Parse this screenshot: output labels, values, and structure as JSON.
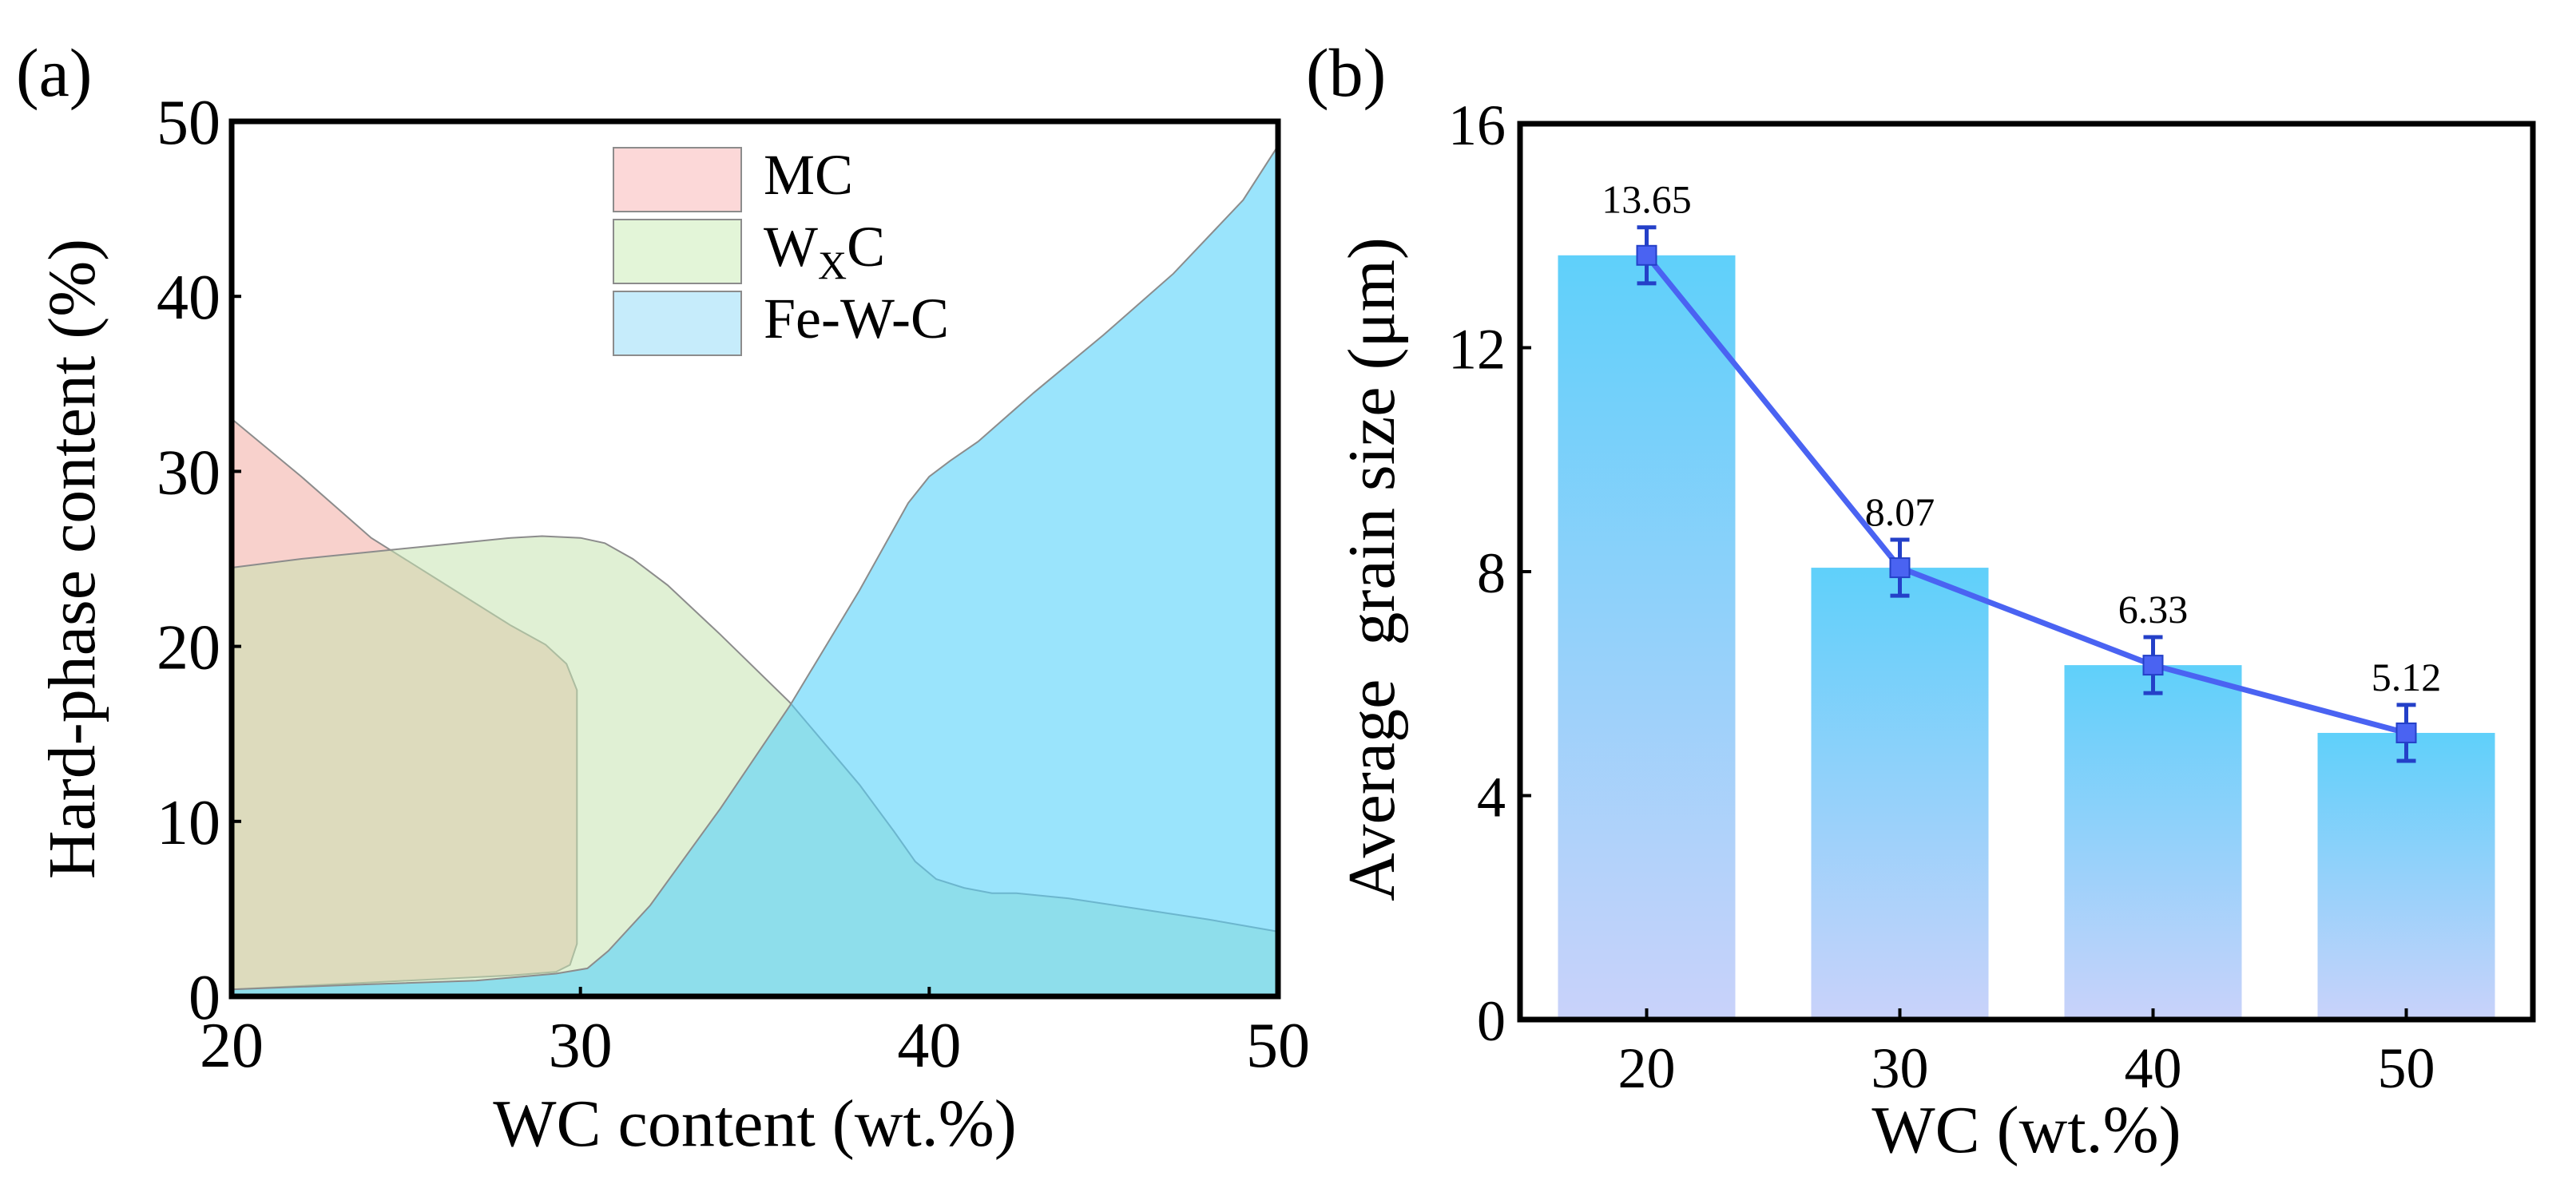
{
  "chart_data": [
    {
      "panel_label": "(a)",
      "type": "area",
      "xlabel": "WC content (wt.%)",
      "ylabel": "Hard-phase content (%)",
      "xlim": [
        20,
        50
      ],
      "ylim": [
        0,
        50
      ],
      "xticks": [
        "20",
        "30",
        "40",
        "50"
      ],
      "yticks": [
        "0",
        "10",
        "20",
        "30",
        "40",
        "50"
      ],
      "legend_position": "top-center",
      "series": [
        {
          "name": "MC",
          "legend_main": "MC",
          "legend_sub": "",
          "legend_tail": "",
          "fill": "#f2a399",
          "fill_opacity": 0.5,
          "legend_fill": "#fcd8d8",
          "points": [
            [
              20.0,
              33.0
            ],
            [
              22.0,
              29.7
            ],
            [
              24.0,
              26.2
            ],
            [
              26.0,
              23.7
            ],
            [
              28.0,
              21.2
            ],
            [
              29.0,
              20.1
            ],
            [
              29.6,
              19.0
            ],
            [
              29.9,
              17.5
            ],
            [
              29.9,
              8.0
            ],
            [
              29.9,
              3.0
            ],
            [
              29.7,
              1.8
            ],
            [
              29.3,
              1.4
            ],
            [
              28.0,
              1.2
            ],
            [
              24.0,
              0.8
            ],
            [
              20.0,
              0.4
            ]
          ]
        },
        {
          "name": "WXC",
          "legend_main": "W",
          "legend_sub": "X",
          "legend_tail": "C",
          "fill": "#c7e3b0",
          "fill_opacity": 0.55,
          "legend_fill": "#e3f5d8",
          "points": [
            [
              20.0,
              24.5
            ],
            [
              22.0,
              25.0
            ],
            [
              24.0,
              25.4
            ],
            [
              26.0,
              25.8
            ],
            [
              28.0,
              26.2
            ],
            [
              28.9,
              26.3
            ],
            [
              30.0,
              26.2
            ],
            [
              30.7,
              25.9
            ],
            [
              31.5,
              25.0
            ],
            [
              32.5,
              23.5
            ],
            [
              34.0,
              20.7
            ],
            [
              36.0,
              16.8
            ],
            [
              38.0,
              12.1
            ],
            [
              39.0,
              9.4
            ],
            [
              39.6,
              7.7
            ],
            [
              40.2,
              6.7
            ],
            [
              41.0,
              6.2
            ],
            [
              41.8,
              5.9
            ],
            [
              42.5,
              5.9
            ],
            [
              44.0,
              5.6
            ],
            [
              46.0,
              5.0
            ],
            [
              48.0,
              4.4
            ],
            [
              50.0,
              3.7
            ],
            [
              50.0,
              0
            ],
            [
              20.0,
              0
            ]
          ]
        },
        {
          "name": "Fe-W-C",
          "legend_main": "Fe-W-C",
          "legend_sub": "",
          "legend_tail": "",
          "fill": "#57d2fa",
          "fill_opacity": 0.6,
          "legend_fill": "#c6ecfb",
          "points": [
            [
              20.0,
              0.4
            ],
            [
              24.0,
              0.7
            ],
            [
              27.0,
              0.9
            ],
            [
              29.3,
              1.3
            ],
            [
              30.2,
              1.6
            ],
            [
              30.8,
              2.6
            ],
            [
              32.0,
              5.2
            ],
            [
              34.0,
              10.7
            ],
            [
              36.0,
              16.6
            ],
            [
              38.0,
              23.2
            ],
            [
              39.4,
              28.2
            ],
            [
              40.0,
              29.7
            ],
            [
              40.6,
              30.6
            ],
            [
              41.4,
              31.7
            ],
            [
              43.0,
              34.5
            ],
            [
              45.0,
              37.8
            ],
            [
              47.0,
              41.3
            ],
            [
              49.0,
              45.5
            ],
            [
              50.0,
              48.6
            ],
            [
              50.0,
              0
            ],
            [
              20.0,
              0
            ]
          ]
        }
      ]
    },
    {
      "panel_label": "(b)",
      "type": "bar",
      "xlabel": "WC (wt.%)",
      "ylabel": "Average  grain size (μm)",
      "categories": [
        "20",
        "30",
        "40",
        "50"
      ],
      "values": [
        13.65,
        8.07,
        6.33,
        5.12
      ],
      "data_labels": [
        "13.65",
        "8.07",
        "6.33",
        "5.12"
      ],
      "errors": [
        0.5,
        0.5,
        0.5,
        0.5
      ],
      "ylim": [
        0,
        16
      ],
      "yticks": [
        "0",
        "4",
        "8",
        "12",
        "16"
      ],
      "bar_gradient": [
        "#5fd0fa",
        "#c9d2fa"
      ],
      "line_color": "#4a63f2"
    }
  ]
}
